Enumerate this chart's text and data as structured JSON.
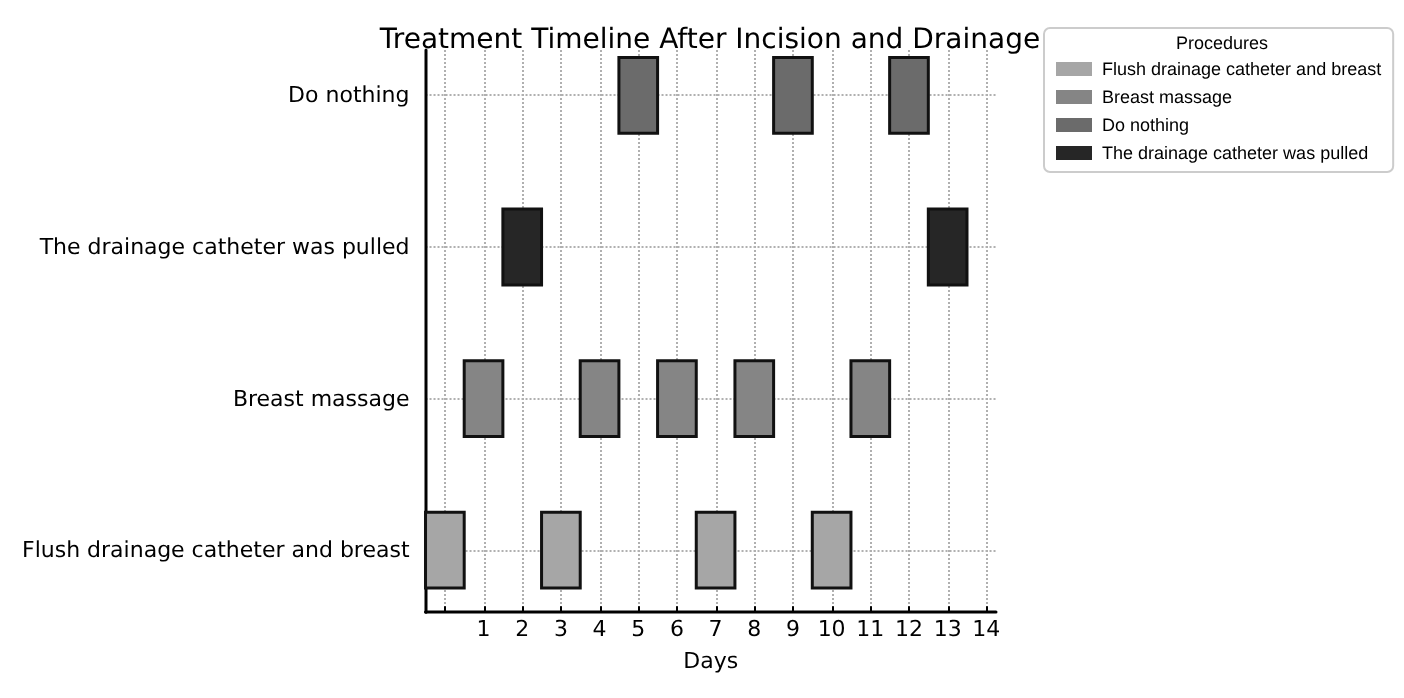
{
  "chart_data": {
    "type": "bar",
    "orientation": "horizontal",
    "title": "Treatment Timeline After Incision and Drainage",
    "xlabel": "Days",
    "legend_title": "Procedures",
    "legend": "top right",
    "grid": true,
    "categories": [
      "Do nothing",
      "The drainage catheter was pulled",
      "Breast massage",
      "Flush drainage catheter and breast"
    ],
    "xlim": [
      -0.5,
      14.25
    ],
    "xticks": [
      {
        "value": 0,
        "label": null
      },
      1,
      2,
      3,
      4,
      5,
      6,
      7,
      8,
      9,
      10,
      11,
      12,
      13,
      14
    ],
    "series": [
      {
        "name": "Flush drainage catheter and breast",
        "color": "#a6a6a6",
        "base": [
          null,
          null,
          null,
          -0.5
        ],
        "values": [
          null,
          null,
          null,
          1
        ]
      },
      {
        "color": "#a6a6a6",
        "base": [
          null,
          null,
          null,
          2.5
        ],
        "values": [
          null,
          null,
          null,
          1
        ]
      },
      {
        "color": "#a6a6a6",
        "base": [
          null,
          null,
          null,
          6.5
        ],
        "values": [
          null,
          null,
          null,
          1
        ]
      },
      {
        "color": "#a6a6a6",
        "base": [
          null,
          null,
          null,
          9.5
        ],
        "values": [
          null,
          null,
          null,
          1
        ]
      },
      {
        "name": "Breast massage",
        "color": "#858585",
        "base": [
          null,
          null,
          0.5,
          null
        ],
        "values": [
          null,
          null,
          1,
          null
        ]
      },
      {
        "color": "#858585",
        "base": [
          null,
          null,
          3.5,
          null
        ],
        "values": [
          null,
          null,
          1,
          null
        ]
      },
      {
        "color": "#858585",
        "base": [
          null,
          null,
          5.5,
          null
        ],
        "values": [
          null,
          null,
          1,
          null
        ]
      },
      {
        "color": "#858585",
        "base": [
          null,
          null,
          7.5,
          null
        ],
        "values": [
          null,
          null,
          1,
          null
        ]
      },
      {
        "color": "#858585",
        "base": [
          null,
          null,
          10.5,
          null
        ],
        "values": [
          null,
          null,
          1,
          null
        ]
      },
      {
        "name": "Do nothing",
        "color": "#6b6b6b",
        "base": [
          4.5,
          null,
          null,
          null
        ],
        "values": [
          1,
          null,
          null,
          null
        ]
      },
      {
        "color": "#6b6b6b",
        "base": [
          8.5,
          null,
          null,
          null
        ],
        "values": [
          1,
          null,
          null,
          null
        ]
      },
      {
        "color": "#6b6b6b",
        "base": [
          11.5,
          null,
          null,
          null
        ],
        "values": [
          1,
          null,
          null,
          null
        ]
      },
      {
        "name": "The drainage catheter was pulled",
        "color": "#262626",
        "base": [
          null,
          1.5,
          null,
          null
        ],
        "values": [
          null,
          1,
          null,
          null
        ]
      },
      {
        "color": "#262626",
        "base": [
          null,
          12.5,
          null,
          null
        ],
        "values": [
          null,
          1,
          null,
          null
        ]
      }
    ]
  }
}
